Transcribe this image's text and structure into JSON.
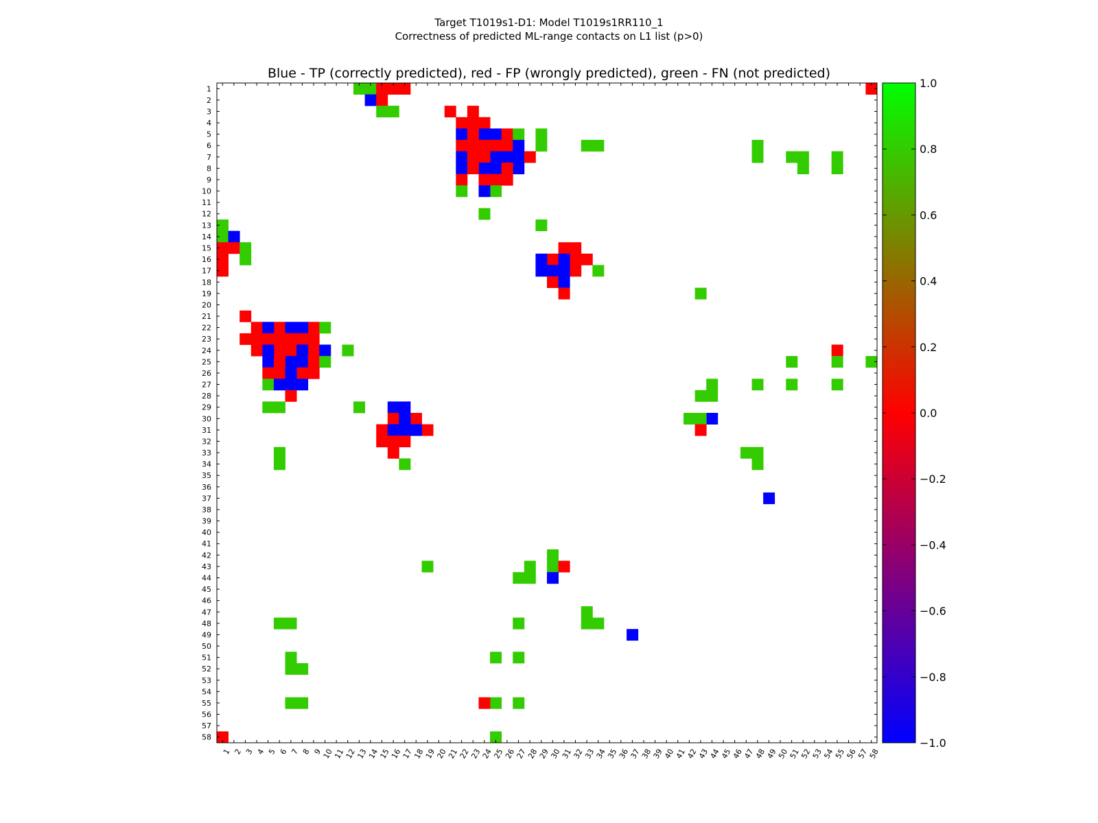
{
  "chart_data": {
    "type": "heatmap",
    "suptitle": [
      "Target T1019s1-D1: Model T1019s1RR110_1",
      "Correctness of predicted ML-range contacts on L1 list (p>0)"
    ],
    "title": "Blue - TP (correctly predicted), red - FP (wrongly predicted), green - FN (not predicted)",
    "n": 58,
    "x_tick_labels": [
      "1",
      "2",
      "3",
      "4",
      "5",
      "6",
      "7",
      "8",
      "9",
      "10",
      "11",
      "12",
      "13",
      "14",
      "15",
      "16",
      "17",
      "18",
      "19",
      "20",
      "21",
      "22",
      "23",
      "24",
      "25",
      "26",
      "27",
      "28",
      "29",
      "30",
      "31",
      "32",
      "33",
      "34",
      "35",
      "36",
      "37",
      "38",
      "39",
      "40",
      "41",
      "42",
      "43",
      "44",
      "45",
      "46",
      "47",
      "48",
      "49",
      "50",
      "51",
      "52",
      "53",
      "54",
      "55",
      "56",
      "57",
      "58"
    ],
    "y_tick_labels": [
      "1",
      "2",
      "3",
      "4",
      "5",
      "6",
      "7",
      "8",
      "9",
      "10",
      "11",
      "12",
      "13",
      "14",
      "15",
      "16",
      "17",
      "18",
      "19",
      "20",
      "21",
      "22",
      "23",
      "24",
      "25",
      "26",
      "27",
      "28",
      "29",
      "30",
      "31",
      "32",
      "33",
      "34",
      "35",
      "36",
      "37",
      "38",
      "39",
      "40",
      "41",
      "42",
      "43",
      "44",
      "45",
      "46",
      "47",
      "48",
      "49",
      "50",
      "51",
      "52",
      "53",
      "54",
      "55",
      "56",
      "57",
      "58"
    ],
    "colorbar": {
      "min": -1.0,
      "max": 1.0,
      "ticks": [
        "1.0",
        "0.8",
        "0.6",
        "0.4",
        "0.2",
        "0.0",
        "−0.2",
        "−0.4",
        "−0.6",
        "−0.8",
        "−1.0"
      ],
      "colors": [
        "#0000ff",
        "#ff0000",
        "#00ff00"
      ]
    },
    "categories": {
      "TP": -1,
      "FP": 0,
      "FN": 0.8
    },
    "colors": {
      "TP": "#0000ff",
      "FP": "#ff0000",
      "FN": "#33cc00"
    },
    "cells": {
      "1": {
        "FN": [
          13,
          14
        ],
        "FP": [
          15,
          16,
          17,
          58
        ]
      },
      "2": {
        "TP": [
          14
        ],
        "FP": [
          15
        ]
      },
      "3": {
        "FN": [
          15,
          16
        ],
        "FP": [
          21,
          23
        ]
      },
      "4": {
        "FP": [
          22,
          23,
          24
        ]
      },
      "5": {
        "TP": [
          22,
          24,
          25
        ],
        "FP": [
          23,
          26
        ],
        "FN": [
          27,
          29
        ]
      },
      "6": {
        "FP": [
          22,
          23,
          24,
          25,
          26
        ],
        "TP": [
          27
        ],
        "FN": [
          29,
          33,
          34,
          48
        ]
      },
      "7": {
        "TP": [
          22,
          25,
          26,
          27
        ],
        "FP": [
          23,
          24,
          28
        ],
        "FN": [
          48,
          51,
          52,
          55
        ]
      },
      "8": {
        "TP": [
          22,
          24,
          25,
          27
        ],
        "FP": [
          23,
          26
        ],
        "FN": [
          52,
          55
        ]
      },
      "9": {
        "FP": [
          22,
          24,
          25,
          26
        ]
      },
      "10": {
        "FN": [
          22,
          25
        ],
        "TP": [
          24
        ]
      },
      "12": {
        "FN": [
          24
        ]
      },
      "13": {
        "FN": [
          1,
          29
        ]
      },
      "14": {
        "FN": [
          1
        ],
        "TP": [
          2
        ]
      },
      "15": {
        "FP": [
          1,
          2,
          31,
          32
        ],
        "FN": [
          3
        ]
      },
      "16": {
        "FP": [
          1,
          30,
          32,
          33
        ],
        "FN": [
          3
        ],
        "TP": [
          29,
          31
        ]
      },
      "17": {
        "FP": [
          1,
          32
        ],
        "TP": [
          29,
          30,
          31
        ],
        "FN": [
          34
        ]
      },
      "18": {
        "FP": [
          30
        ],
        "TP": [
          31
        ]
      },
      "19": {
        "FP": [
          31
        ],
        "FN": [
          43
        ]
      },
      "21": {
        "FP": [
          3
        ]
      },
      "22": {
        "FP": [
          4,
          6,
          9
        ],
        "TP": [
          5,
          7,
          8
        ],
        "FN": [
          10
        ]
      },
      "23": {
        "FP": [
          3,
          4,
          5,
          6,
          7,
          8,
          9
        ]
      },
      "24": {
        "FP": [
          4,
          6,
          7,
          9,
          55
        ],
        "TP": [
          5,
          8,
          10
        ],
        "FN": [
          12
        ]
      },
      "25": {
        "TP": [
          5,
          7,
          8
        ],
        "FP": [
          6,
          9
        ],
        "FN": [
          10,
          51,
          55,
          58
        ]
      },
      "26": {
        "FP": [
          5,
          6,
          8,
          9
        ],
        "TP": [
          7
        ]
      },
      "27": {
        "FN": [
          5,
          44,
          48,
          51,
          55
        ],
        "TP": [
          6,
          7,
          8
        ]
      },
      "28": {
        "FP": [
          7
        ],
        "FN": [
          43,
          44
        ]
      },
      "29": {
        "FN": [
          5,
          6,
          13
        ],
        "TP": [
          16,
          17
        ]
      },
      "30": {
        "FP": [
          16,
          18
        ],
        "TP": [
          17,
          44
        ],
        "FN": [
          42,
          43
        ]
      },
      "31": {
        "FP": [
          15,
          19,
          43
        ],
        "TP": [
          16,
          17,
          18
        ]
      },
      "32": {
        "FP": [
          15,
          16,
          17
        ]
      },
      "33": {
        "FN": [
          6,
          47,
          48
        ],
        "FP": [
          16
        ]
      },
      "34": {
        "FN": [
          6,
          17,
          48
        ]
      },
      "37": {
        "TP": [
          49
        ]
      },
      "42": {
        "FN": [
          30
        ]
      },
      "43": {
        "FN": [
          19,
          28,
          30
        ],
        "FP": [
          31
        ]
      },
      "44": {
        "FN": [
          27,
          28
        ],
        "TP": [
          30
        ]
      },
      "47": {
        "FN": [
          33
        ]
      },
      "48": {
        "FN": [
          6,
          7,
          27,
          33,
          34
        ]
      },
      "49": {
        "TP": [
          37
        ]
      },
      "51": {
        "FN": [
          7,
          25,
          27
        ]
      },
      "52": {
        "FN": [
          7,
          8
        ]
      },
      "55": {
        "FN": [
          7,
          8,
          25,
          27
        ],
        "FP": [
          24
        ]
      },
      "58": {
        "FP": [
          1
        ],
        "FN": [
          25
        ]
      }
    }
  }
}
